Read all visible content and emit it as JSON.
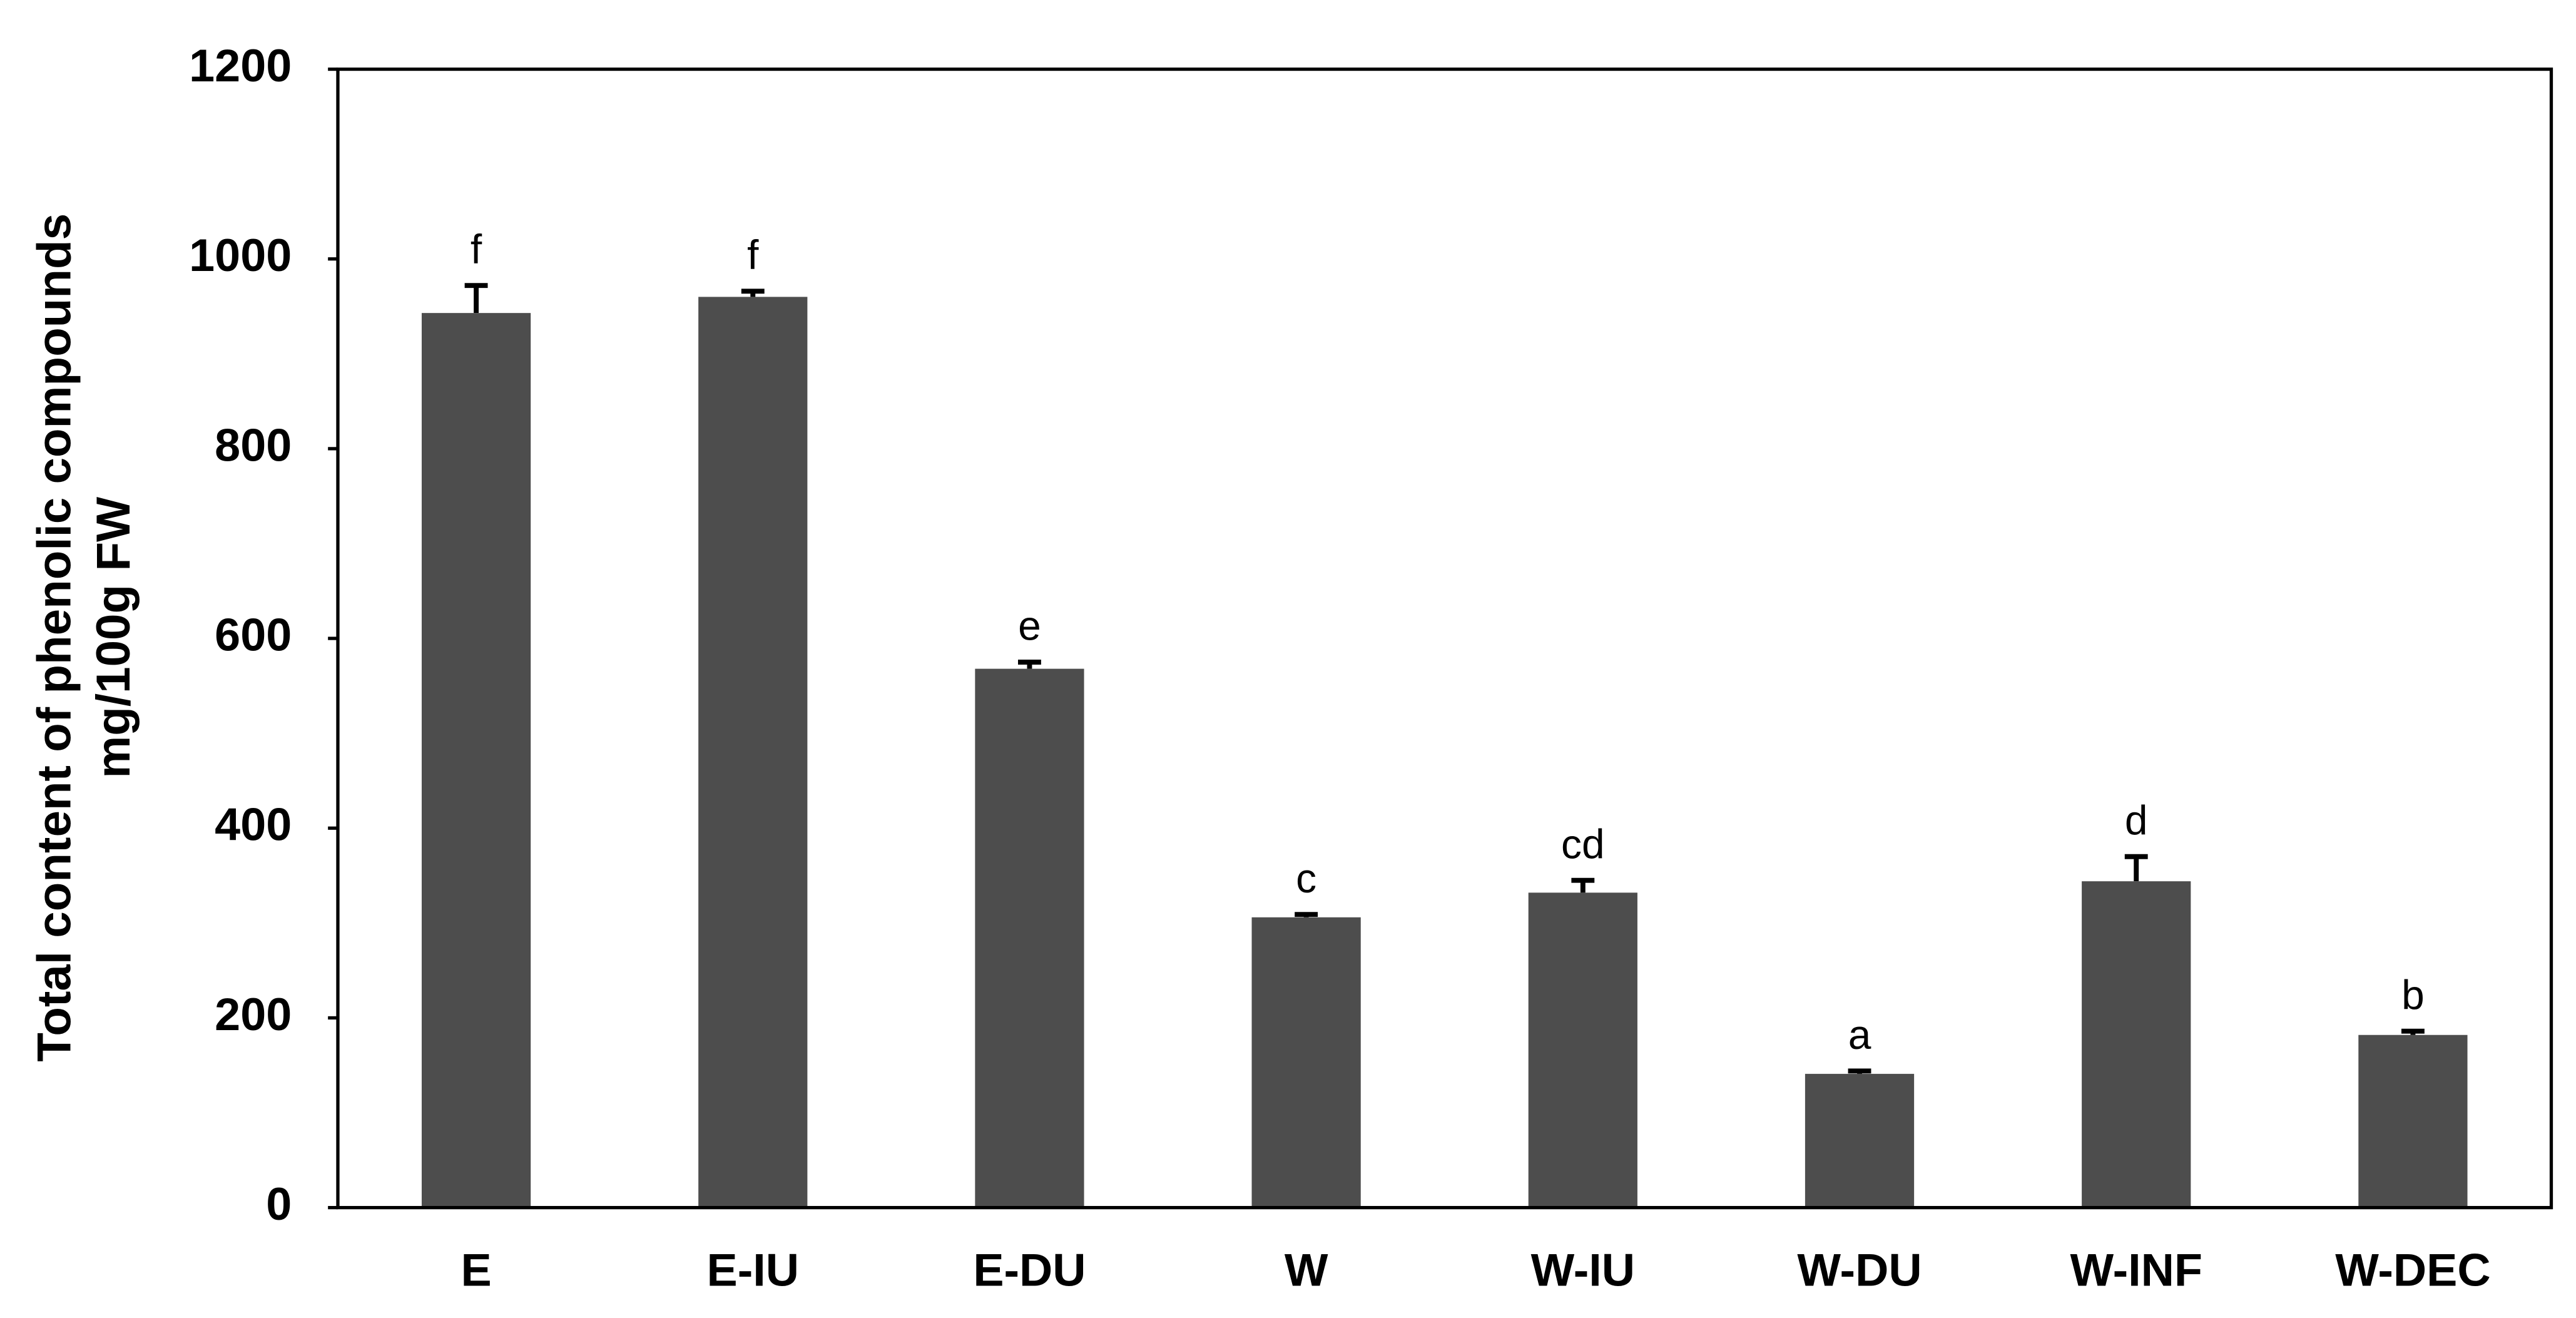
{
  "chart_data": {
    "type": "bar",
    "y_label": [
      "Total content of phenolic compounds",
      "mg/100g FW"
    ],
    "categories": [
      "E",
      "E-IU",
      "E-DU",
      "W",
      "W-IU",
      "W-DU",
      "W-INF",
      "W-DEC"
    ],
    "values": [
      943,
      960,
      568,
      306,
      332,
      141,
      344,
      182
    ],
    "errors": [
      29,
      6,
      7,
      3,
      13,
      3,
      26,
      4
    ],
    "annotations": [
      "f",
      "f",
      "e",
      "c",
      "cd",
      "a",
      "d",
      "b"
    ],
    "color": "#4d4d4d",
    "ylim": [
      0,
      1200
    ],
    "yticks": [
      0,
      200,
      400,
      600,
      800,
      1000,
      1200
    ],
    "grid": false
  }
}
